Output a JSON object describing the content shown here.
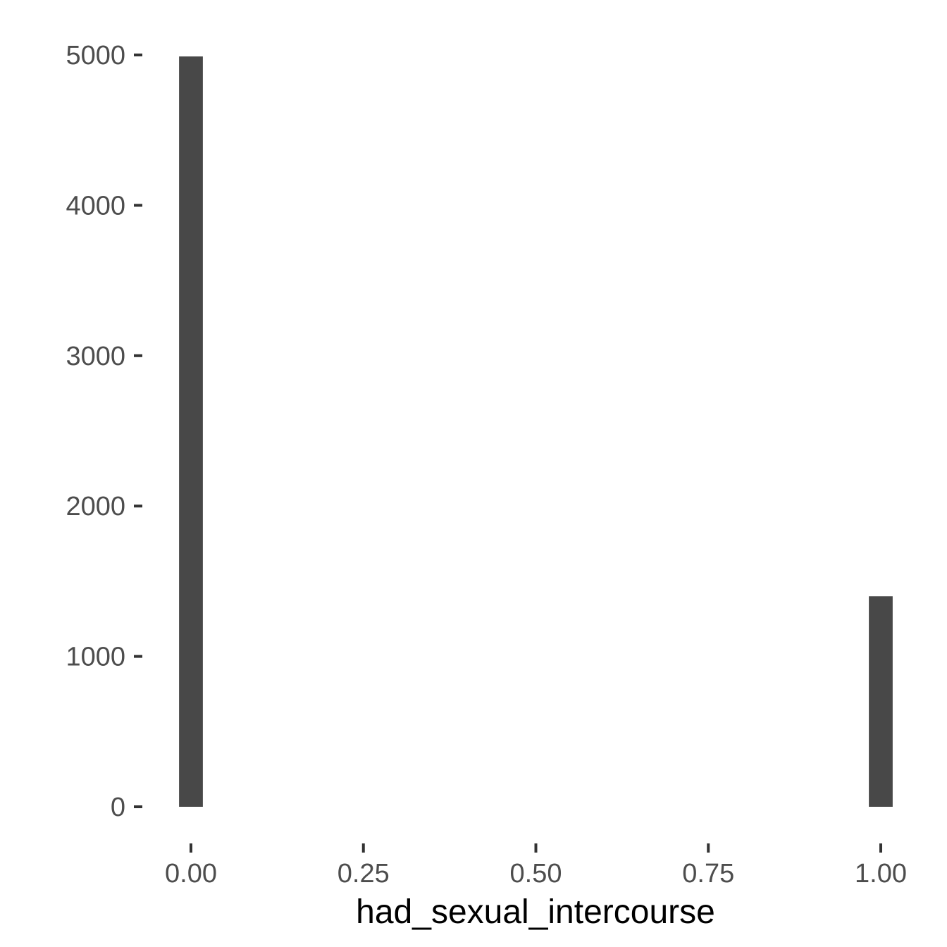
{
  "chart_data": {
    "type": "bar",
    "histogram": true,
    "title": "",
    "xlabel": "had_sexual_intercourse",
    "ylabel": "",
    "bins": [
      {
        "x_center": 0.0,
        "count": 4990
      },
      {
        "x_center": 1.0,
        "count": 1400
      }
    ],
    "bin_width": 0.0345,
    "xlim": [
      -0.07,
      1.07
    ],
    "ylim": [
      0,
      5000
    ],
    "x_ticks": [
      0.0,
      0.25,
      0.5,
      0.75,
      1.0
    ],
    "x_tick_labels": [
      "0.00",
      "0.25",
      "0.50",
      "0.75",
      "1.00"
    ],
    "y_ticks": [
      0,
      1000,
      2000,
      3000,
      4000,
      5000
    ],
    "y_tick_labels": [
      "0",
      "1000",
      "2000",
      "3000",
      "4000",
      "5000"
    ],
    "grid": false,
    "legend": "none",
    "colors": {
      "bar": "#484848",
      "tick": "#333333",
      "tick_label": "#4d4d4d",
      "axis_title": "#000000"
    }
  }
}
